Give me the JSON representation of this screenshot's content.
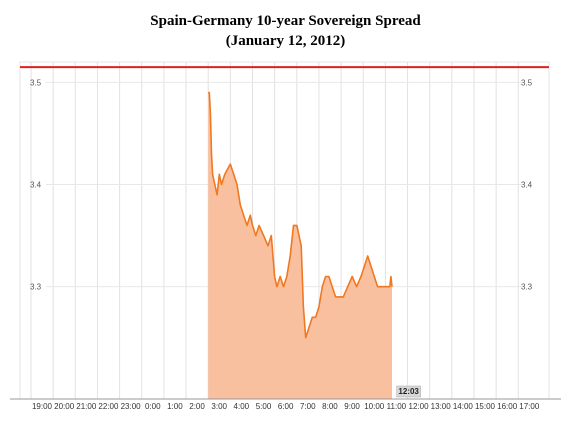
{
  "chart_data": {
    "type": "area",
    "title": "Spain-Germany 10-year Sovereign Spread",
    "subtitle": "(January 12, 2012)",
    "xlabel": "",
    "ylabel": "",
    "x_ticks": [
      "19:00",
      "20:00",
      "21:00",
      "22:00",
      "23:00",
      "0:00",
      "1:00",
      "2:00",
      "3:00",
      "4:00",
      "5:00",
      "6:00",
      "7:00",
      "8:00",
      "9:00",
      "10:00",
      "11:00",
      "12:00",
      "13:00",
      "14:00",
      "15:00",
      "16:00",
      "17:00"
    ],
    "y_ticks": [
      3.3,
      3.4,
      3.5
    ],
    "ylim": [
      3.19,
      3.52
    ],
    "reference_line": {
      "value": 3.515,
      "color": "#e02020"
    },
    "current_time_label": "12:03",
    "grid": true,
    "series": [
      {
        "color": "#f07820",
        "fill": "#f9c0a0",
        "points": [
          [
            3.0,
            3.49
          ],
          [
            3.05,
            3.49
          ],
          [
            3.1,
            3.47
          ],
          [
            3.15,
            3.43
          ],
          [
            3.2,
            3.41
          ],
          [
            3.3,
            3.4
          ],
          [
            3.4,
            3.39
          ],
          [
            3.5,
            3.41
          ],
          [
            3.6,
            3.4
          ],
          [
            3.75,
            3.41
          ],
          [
            4.0,
            3.42
          ],
          [
            4.15,
            3.41
          ],
          [
            4.3,
            3.4
          ],
          [
            4.45,
            3.38
          ],
          [
            4.6,
            3.37
          ],
          [
            4.75,
            3.36
          ],
          [
            4.9,
            3.37
          ],
          [
            5.0,
            3.36
          ],
          [
            5.15,
            3.35
          ],
          [
            5.3,
            3.36
          ],
          [
            5.5,
            3.35
          ],
          [
            5.7,
            3.34
          ],
          [
            5.85,
            3.35
          ],
          [
            6.0,
            3.31
          ],
          [
            6.1,
            3.3
          ],
          [
            6.25,
            3.31
          ],
          [
            6.4,
            3.3
          ],
          [
            6.55,
            3.31
          ],
          [
            6.7,
            3.33
          ],
          [
            6.85,
            3.36
          ],
          [
            7.0,
            3.36
          ],
          [
            7.1,
            3.35
          ],
          [
            7.2,
            3.34
          ],
          [
            7.3,
            3.28
          ],
          [
            7.4,
            3.25
          ],
          [
            7.55,
            3.26
          ],
          [
            7.7,
            3.27
          ],
          [
            7.85,
            3.27
          ],
          [
            8.0,
            3.28
          ],
          [
            8.15,
            3.3
          ],
          [
            8.3,
            3.31
          ],
          [
            8.45,
            3.31
          ],
          [
            8.6,
            3.3
          ],
          [
            8.75,
            3.29
          ],
          [
            8.9,
            3.29
          ],
          [
            9.1,
            3.29
          ],
          [
            9.3,
            3.3
          ],
          [
            9.5,
            3.31
          ],
          [
            9.7,
            3.3
          ],
          [
            9.9,
            3.31
          ],
          [
            10.05,
            3.32
          ],
          [
            10.2,
            3.33
          ],
          [
            10.35,
            3.32
          ],
          [
            10.5,
            3.31
          ],
          [
            10.65,
            3.3
          ],
          [
            10.8,
            3.3
          ],
          [
            10.95,
            3.3
          ],
          [
            11.1,
            3.3
          ],
          [
            11.2,
            3.3
          ],
          [
            11.25,
            3.31
          ],
          [
            11.3,
            3.3
          ]
        ]
      }
    ]
  }
}
